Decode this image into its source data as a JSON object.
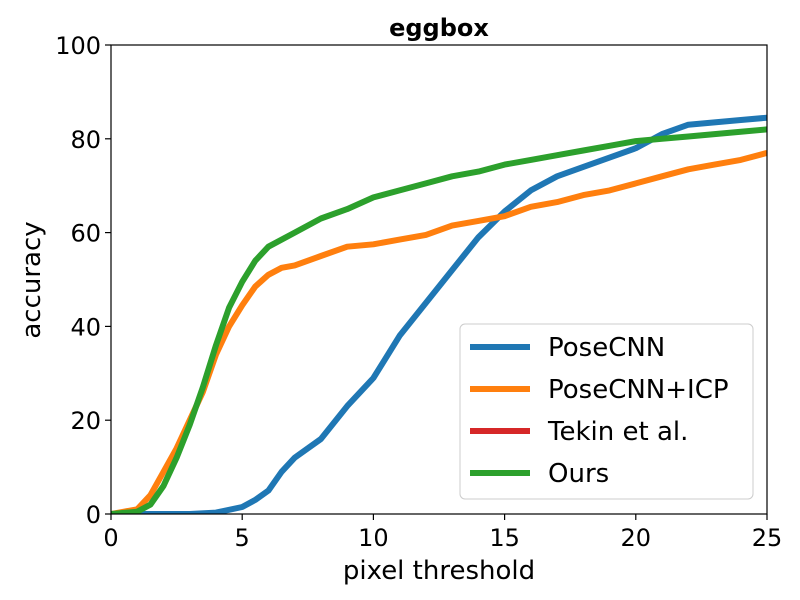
{
  "chart_data": {
    "type": "line",
    "title": "eggbox",
    "xlabel": "pixel threshold",
    "ylabel": "accuracy",
    "xlim": [
      0,
      25
    ],
    "ylim": [
      0,
      100
    ],
    "xticks": [
      "0",
      "5",
      "10",
      "15",
      "20",
      "25"
    ],
    "yticks": [
      "0",
      "20",
      "40",
      "60",
      "80",
      "100"
    ],
    "grid": false,
    "legend_position": "lower-right",
    "series": [
      {
        "name": "PoseCNN",
        "color": "#1f77b4",
        "x": [
          0,
          3,
          4,
          5,
          5.5,
          6,
          6.5,
          7,
          8,
          9,
          10,
          11,
          12,
          13,
          14,
          15,
          16,
          17,
          18,
          19,
          20,
          21,
          22,
          23,
          24,
          25
        ],
        "y": [
          0,
          0,
          0.3,
          1.5,
          3,
          5,
          9,
          12,
          16,
          23,
          29,
          38,
          45,
          52,
          59,
          64.5,
          69,
          72,
          74,
          76,
          78,
          81,
          83,
          83.5,
          84,
          84.5
        ]
      },
      {
        "name": "PoseCNN+ICP",
        "color": "#ff7f0e",
        "x": [
          0,
          1,
          1.5,
          2,
          2.5,
          3,
          3.5,
          4,
          4.5,
          5,
          5.5,
          6,
          6.5,
          7,
          8,
          9,
          10,
          11,
          12,
          13,
          14,
          15,
          16,
          17,
          18,
          19,
          20,
          21,
          22,
          23,
          24,
          25
        ],
        "y": [
          0,
          1,
          4,
          9,
          14,
          20,
          26,
          34,
          40,
          44.5,
          48.5,
          51,
          52.5,
          53,
          55,
          57,
          57.5,
          58.5,
          59.5,
          61.5,
          62.5,
          63.5,
          65.5,
          66.5,
          68,
          69,
          70.5,
          72,
          73.5,
          74.5,
          75.5,
          77
        ]
      },
      {
        "name": "Tekin et al.",
        "color": "#d62728",
        "x": [],
        "y": []
      },
      {
        "name": "Ours",
        "color": "#2ca02c",
        "x": [
          0,
          1,
          1.5,
          2,
          2.5,
          3,
          3.5,
          4,
          4.5,
          5,
          5.5,
          6,
          7,
          8,
          9,
          10,
          11,
          12,
          13,
          14,
          15,
          16,
          17,
          18,
          19,
          20,
          21,
          22,
          23,
          24,
          25
        ],
        "y": [
          0,
          0.5,
          2,
          6,
          12,
          19,
          27,
          36,
          44,
          49.5,
          54,
          57,
          60,
          63,
          65,
          67.5,
          69,
          70.5,
          72,
          73,
          74.5,
          75.5,
          76.5,
          77.5,
          78.5,
          79.5,
          80,
          80.5,
          81,
          81.5,
          82
        ]
      }
    ]
  }
}
